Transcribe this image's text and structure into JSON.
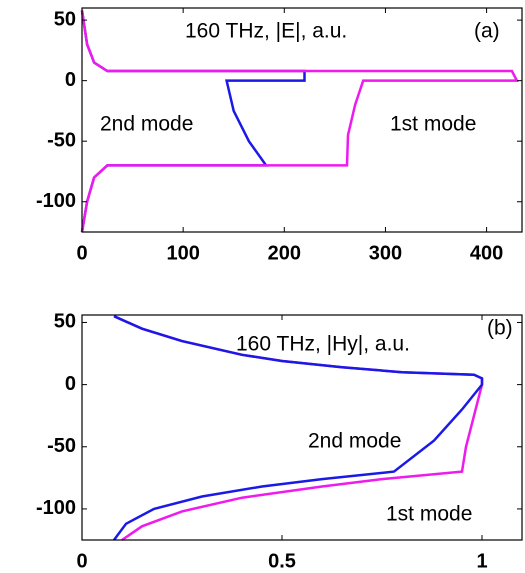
{
  "chart_data": [
    {
      "type": "line",
      "title": "160 THz, |E|, a.u.",
      "panel_label": "(a)",
      "annotations": [
        "2nd mode",
        "1st mode"
      ],
      "xlim": [
        0,
        435
      ],
      "xticks": [
        0,
        100,
        200,
        300,
        400
      ],
      "ylim": [
        -125,
        60
      ],
      "yticks": [
        -100,
        -50,
        0,
        50
      ],
      "series": [
        {
          "name": "2nd mode",
          "color": "#1a1ae6",
          "x": [
            0,
            5,
            12,
            25,
            220,
            220,
            143,
            150,
            165,
            182,
            25,
            12,
            5,
            0
          ],
          "values": [
            58,
            30,
            15,
            8,
            8,
            0,
            0,
            -25,
            -50,
            -70,
            -70,
            -80,
            -100,
            -125
          ]
        },
        {
          "name": "1st mode",
          "color": "#ee1aee",
          "x": [
            0,
            5,
            12,
            25,
            425,
            430,
            278,
            270,
            263,
            262,
            25,
            12,
            5,
            0
          ],
          "values": [
            58,
            30,
            15,
            8,
            8,
            0,
            0,
            -20,
            -45,
            -70,
            -70,
            -80,
            -100,
            -125
          ]
        }
      ]
    },
    {
      "type": "line",
      "title": "160 THz, |Hy|, a.u.",
      "panel_label": "(b)",
      "annotations": [
        "2nd mode",
        "1st mode"
      ],
      "xlim": [
        0,
        1.1
      ],
      "xticks": [
        0,
        0.5,
        1
      ],
      "ylim": [
        -125,
        56
      ],
      "yticks": [
        -100,
        -50,
        0,
        50
      ],
      "series": [
        {
          "name": "1st mode",
          "color": "#ee1aee",
          "x": [
            0.08,
            0.15,
            0.25,
            0.4,
            0.5,
            0.65,
            0.8,
            0.98,
            1.0,
            1.0,
            0.98,
            0.96,
            0.95,
            0.75,
            0.6,
            0.4,
            0.25,
            0.15,
            0.1
          ],
          "values": [
            55,
            45,
            35,
            24,
            19,
            14,
            10,
            8,
            5,
            0,
            -25,
            -50,
            -70,
            -76,
            -82,
            -91,
            -102,
            -114,
            -125
          ]
        },
        {
          "name": "2nd mode",
          "color": "#1a1ae6",
          "x": [
            0.08,
            0.15,
            0.25,
            0.4,
            0.5,
            0.65,
            0.8,
            0.98,
            1.0,
            1.0,
            0.95,
            0.88,
            0.78,
            0.6,
            0.45,
            0.3,
            0.18,
            0.11,
            0.08
          ],
          "values": [
            55,
            45,
            35,
            24,
            19,
            14,
            10,
            8,
            5,
            0,
            -20,
            -45,
            -70,
            -76,
            -82,
            -90,
            -100,
            -112,
            -125
          ]
        }
      ]
    }
  ]
}
